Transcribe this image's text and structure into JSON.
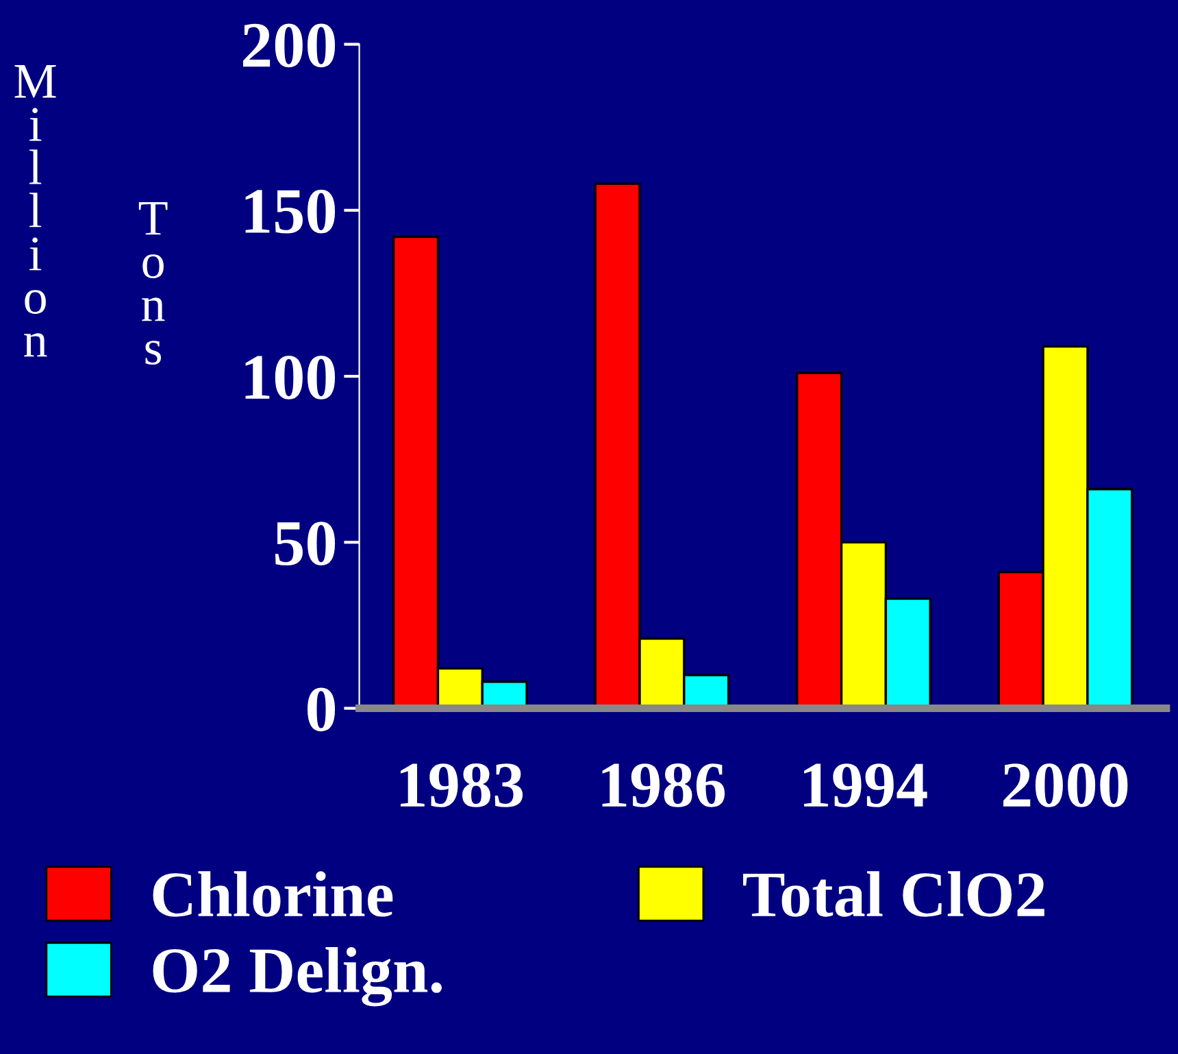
{
  "chart_data": {
    "type": "bar",
    "ylabel": "Million Tons",
    "categories": [
      "1983",
      "1986",
      "1994",
      "2000"
    ],
    "series": [
      {
        "name": "Chlorine",
        "color": "#ff0000",
        "values": [
          142,
          158,
          101,
          41
        ]
      },
      {
        "name": "Total ClO2",
        "color": "#ffff00",
        "values": [
          12,
          21,
          50,
          109
        ]
      },
      {
        "name": "O2 Delign.",
        "color": "#00ffff",
        "values": [
          8,
          10,
          33,
          66
        ]
      }
    ],
    "ylim": [
      0,
      200
    ],
    "yticks": [
      0,
      50,
      100,
      150,
      200
    ],
    "grid": false,
    "legend": "bottom"
  }
}
